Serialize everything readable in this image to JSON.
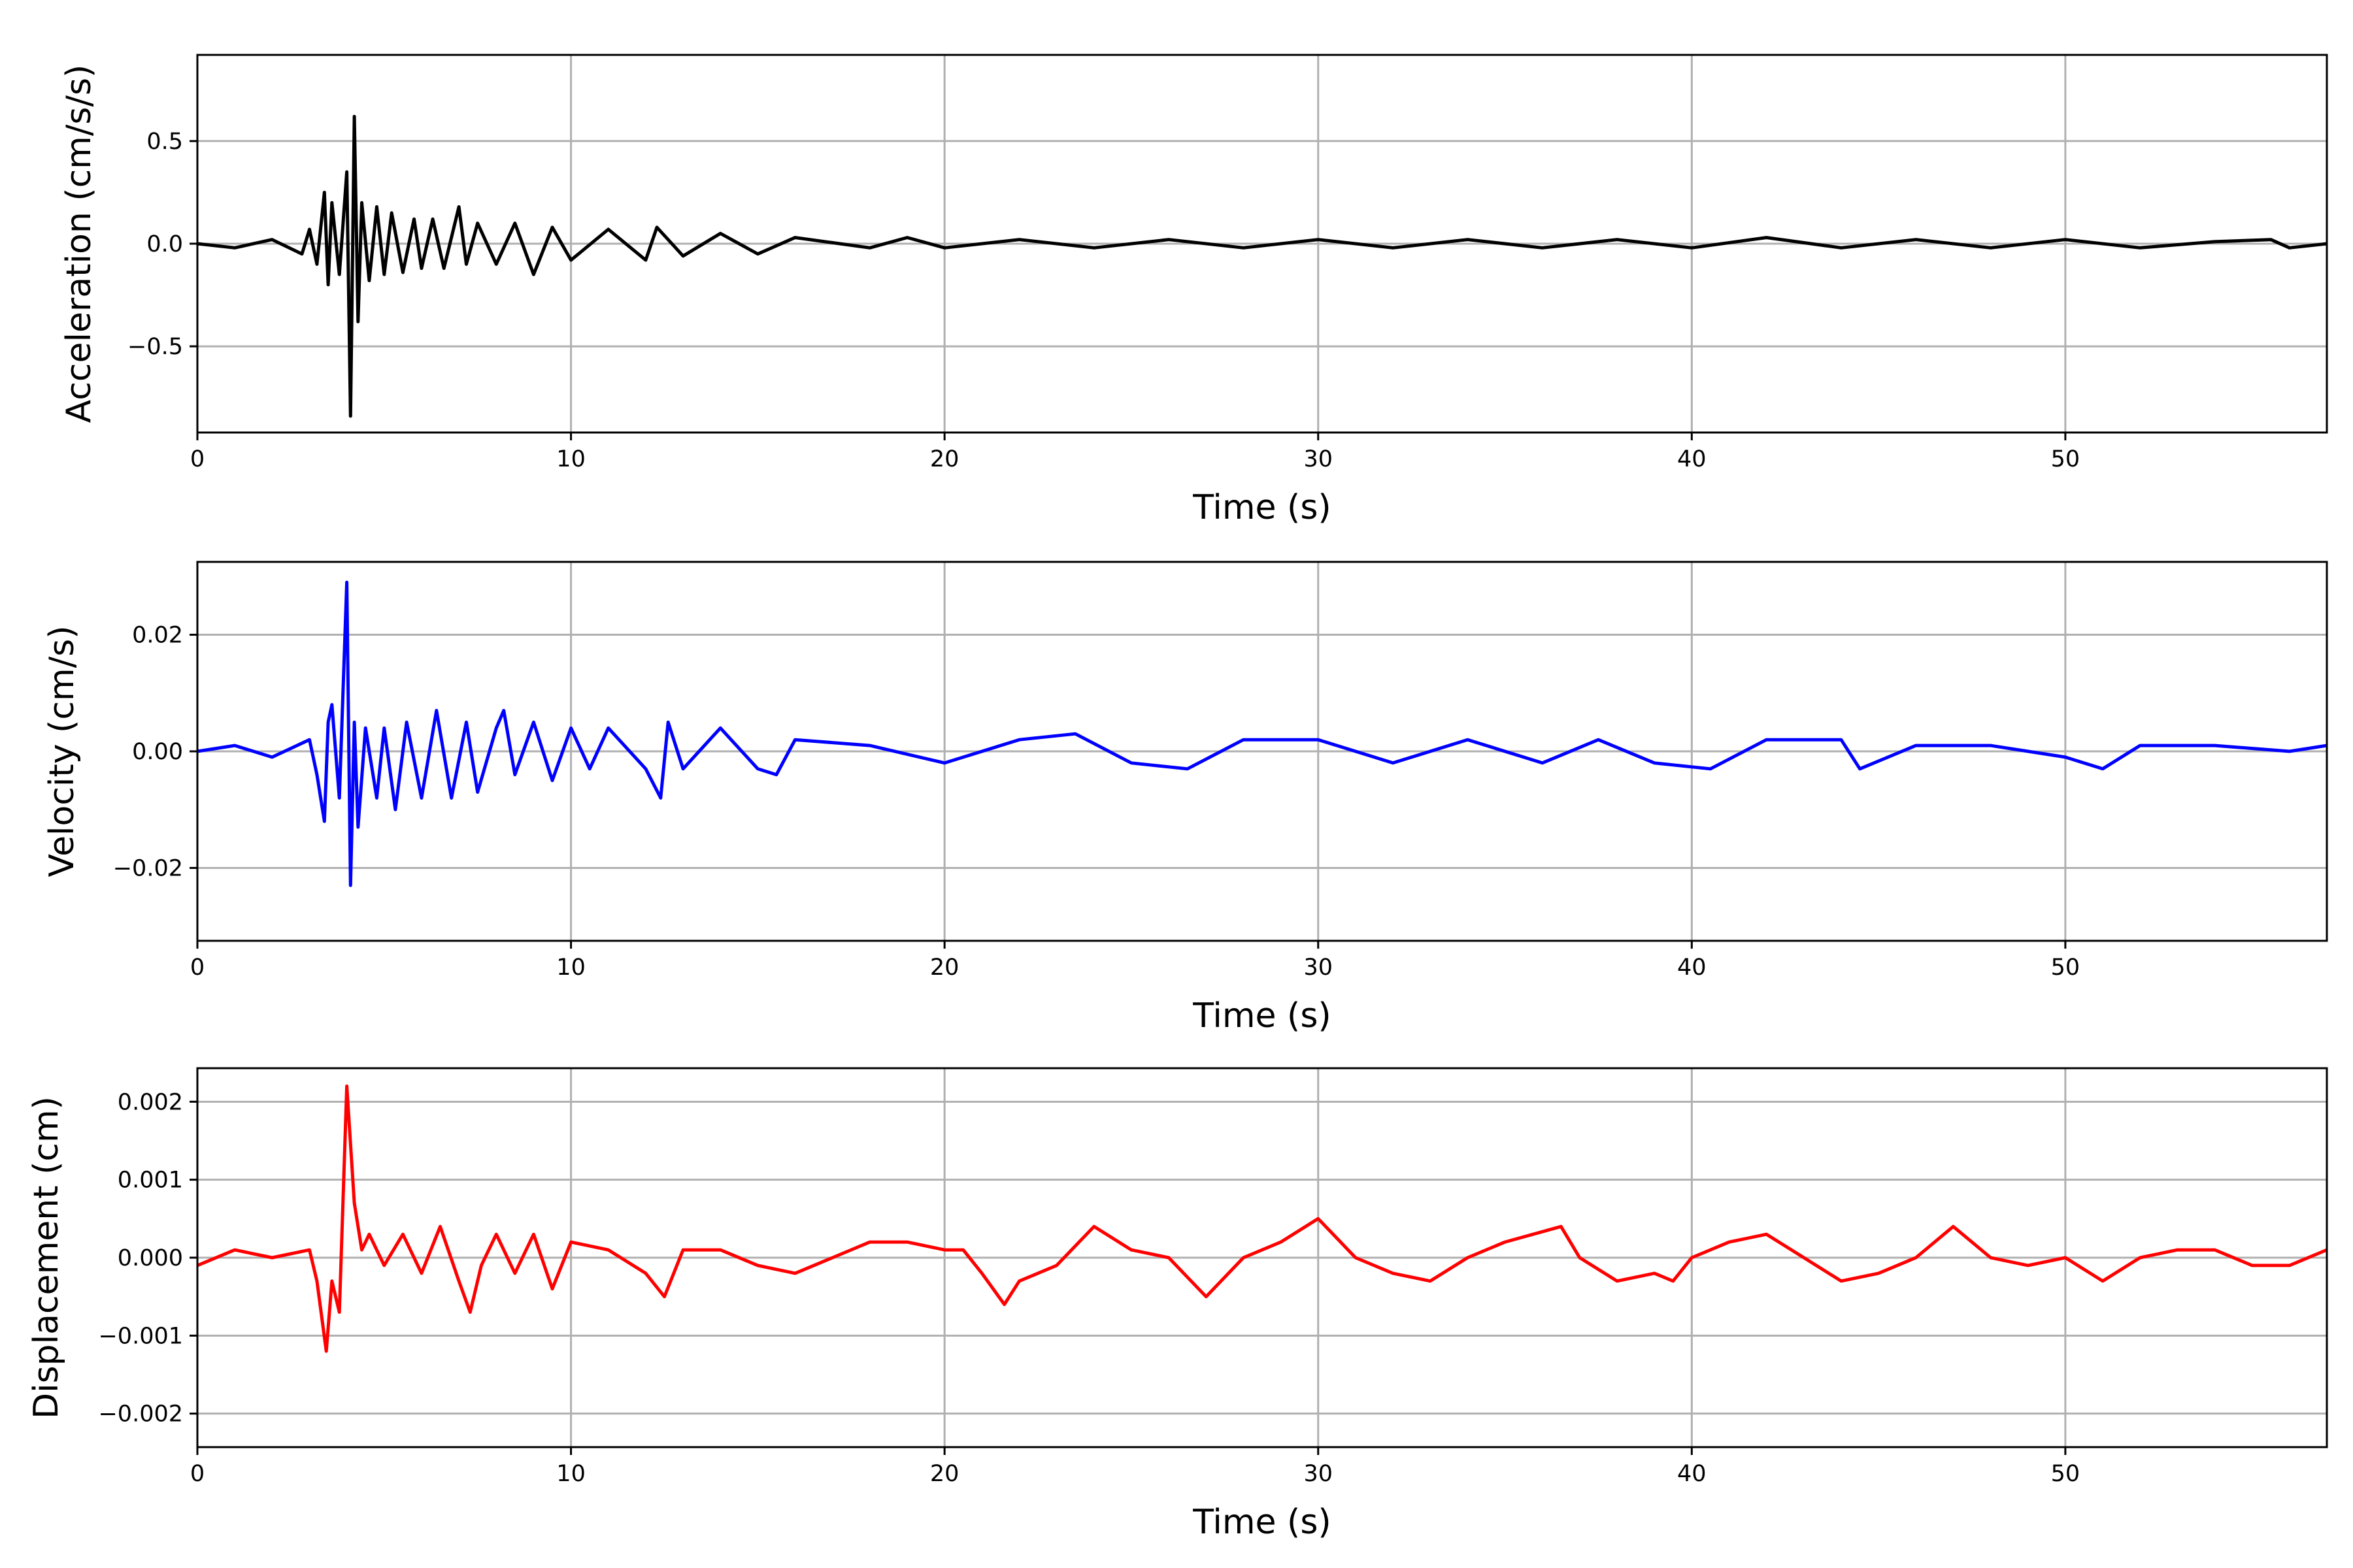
{
  "figure": {
    "background": "#ffffff",
    "grid_color": "#b0b0b0"
  },
  "chart_data": [
    {
      "type": "line",
      "id": "acceleration",
      "xlabel": "Time (s)",
      "ylabel": "Acceleration (cm/s/s)",
      "xlim": [
        0,
        57
      ],
      "ylim": [
        -0.92,
        0.92
      ],
      "xticks": [
        0,
        10,
        20,
        30,
        40,
        50
      ],
      "yticks": [
        -0.5,
        0.0,
        0.5
      ],
      "yticklabels": [
        "−0.5",
        "0.0",
        "0.5"
      ],
      "grid": true,
      "series": [
        {
          "color": "#000000",
          "points": [
            [
              0,
              0.0
            ],
            [
              1,
              -0.02
            ],
            [
              2,
              0.02
            ],
            [
              2.8,
              -0.05
            ],
            [
              3.0,
              0.07
            ],
            [
              3.2,
              -0.1
            ],
            [
              3.4,
              0.25
            ],
            [
              3.5,
              -0.2
            ],
            [
              3.6,
              0.2
            ],
            [
              3.8,
              -0.15
            ],
            [
              4.0,
              0.35
            ],
            [
              4.1,
              -0.84
            ],
            [
              4.2,
              0.62
            ],
            [
              4.3,
              -0.38
            ],
            [
              4.4,
              0.2
            ],
            [
              4.6,
              -0.18
            ],
            [
              4.8,
              0.18
            ],
            [
              5.0,
              -0.15
            ],
            [
              5.2,
              0.15
            ],
            [
              5.5,
              -0.14
            ],
            [
              5.8,
              0.12
            ],
            [
              6.0,
              -0.12
            ],
            [
              6.3,
              0.12
            ],
            [
              6.6,
              -0.12
            ],
            [
              7.0,
              0.18
            ],
            [
              7.2,
              -0.1
            ],
            [
              7.5,
              0.1
            ],
            [
              8.0,
              -0.1
            ],
            [
              8.5,
              0.1
            ],
            [
              9.0,
              -0.15
            ],
            [
              9.5,
              0.08
            ],
            [
              10,
              -0.08
            ],
            [
              11,
              0.07
            ],
            [
              12,
              -0.08
            ],
            [
              12.3,
              0.08
            ],
            [
              13,
              -0.06
            ],
            [
              14,
              0.05
            ],
            [
              15,
              -0.05
            ],
            [
              16,
              0.03
            ],
            [
              18,
              -0.02
            ],
            [
              19,
              0.03
            ],
            [
              20,
              -0.02
            ],
            [
              22,
              0.02
            ],
            [
              24,
              -0.02
            ],
            [
              26,
              0.02
            ],
            [
              28,
              -0.02
            ],
            [
              30,
              0.02
            ],
            [
              32,
              -0.02
            ],
            [
              34,
              0.02
            ],
            [
              36,
              -0.02
            ],
            [
              38,
              0.02
            ],
            [
              40,
              -0.02
            ],
            [
              42,
              0.03
            ],
            [
              44,
              -0.02
            ],
            [
              46,
              0.02
            ],
            [
              48,
              -0.02
            ],
            [
              50,
              0.02
            ],
            [
              52,
              -0.02
            ],
            [
              54,
              0.01
            ],
            [
              55.5,
              0.02
            ],
            [
              56,
              -0.02
            ],
            [
              57,
              0.0
            ]
          ]
        }
      ]
    },
    {
      "type": "line",
      "id": "velocity",
      "xlabel": "Time (s)",
      "ylabel": "Velocity (cm/s)",
      "xlim": [
        0,
        57
      ],
      "ylim": [
        -0.0325,
        0.0325
      ],
      "xticks": [
        0,
        10,
        20,
        30,
        40,
        50
      ],
      "yticks": [
        -0.02,
        0.0,
        0.02
      ],
      "yticklabels": [
        "−0.02",
        "0.00",
        "0.02"
      ],
      "grid": true,
      "series": [
        {
          "color": "#0000ff",
          "points": [
            [
              0,
              0.0
            ],
            [
              1,
              0.001
            ],
            [
              2,
              -0.001
            ],
            [
              3.0,
              0.002
            ],
            [
              3.2,
              -0.004
            ],
            [
              3.4,
              -0.012
            ],
            [
              3.5,
              0.005
            ],
            [
              3.6,
              0.008
            ],
            [
              3.8,
              -0.008
            ],
            [
              4.0,
              0.029
            ],
            [
              4.1,
              -0.023
            ],
            [
              4.2,
              0.005
            ],
            [
              4.3,
              -0.013
            ],
            [
              4.5,
              0.004
            ],
            [
              4.8,
              -0.008
            ],
            [
              5.0,
              0.004
            ],
            [
              5.3,
              -0.01
            ],
            [
              5.6,
              0.005
            ],
            [
              6.0,
              -0.008
            ],
            [
              6.4,
              0.007
            ],
            [
              6.8,
              -0.008
            ],
            [
              7.2,
              0.005
            ],
            [
              7.5,
              -0.007
            ],
            [
              8.0,
              0.004
            ],
            [
              8.2,
              0.007
            ],
            [
              8.5,
              -0.004
            ],
            [
              9.0,
              0.005
            ],
            [
              9.5,
              -0.005
            ],
            [
              10,
              0.004
            ],
            [
              10.5,
              -0.003
            ],
            [
              11,
              0.004
            ],
            [
              12,
              -0.003
            ],
            [
              12.4,
              -0.008
            ],
            [
              12.6,
              0.005
            ],
            [
              13,
              -0.003
            ],
            [
              14,
              0.004
            ],
            [
              15,
              -0.003
            ],
            [
              15.5,
              -0.004
            ],
            [
              16,
              0.002
            ],
            [
              18,
              0.001
            ],
            [
              20,
              -0.002
            ],
            [
              22,
              0.002
            ],
            [
              23.5,
              0.003
            ],
            [
              25,
              -0.002
            ],
            [
              26.5,
              -0.003
            ],
            [
              28,
              0.002
            ],
            [
              30,
              0.002
            ],
            [
              32,
              -0.002
            ],
            [
              34,
              0.002
            ],
            [
              36,
              -0.002
            ],
            [
              37.5,
              0.002
            ],
            [
              39,
              -0.002
            ],
            [
              40.5,
              -0.003
            ],
            [
              42,
              0.002
            ],
            [
              44,
              0.002
            ],
            [
              44.5,
              -0.003
            ],
            [
              46,
              0.001
            ],
            [
              48,
              0.001
            ],
            [
              50,
              -0.001
            ],
            [
              51,
              -0.003
            ],
            [
              52,
              0.001
            ],
            [
              54,
              0.001
            ],
            [
              56,
              0.0
            ],
            [
              57,
              0.001
            ]
          ]
        }
      ]
    },
    {
      "type": "line",
      "id": "displacement",
      "xlabel": "Time (s)",
      "ylabel": "Displacement (cm)",
      "xlim": [
        0,
        57
      ],
      "ylim": [
        -0.00243,
        0.00243
      ],
      "xticks": [
        0,
        10,
        20,
        30,
        40,
        50
      ],
      "yticks": [
        -0.002,
        -0.001,
        0.0,
        0.001,
        0.002
      ],
      "yticklabels": [
        "−0.002",
        "−0.001",
        "0.000",
        "0.001",
        "0.002"
      ],
      "grid": true,
      "series": [
        {
          "color": "#ff0000",
          "points": [
            [
              0,
              -0.0001
            ],
            [
              1,
              0.0001
            ],
            [
              2,
              0.0
            ],
            [
              3,
              0.0001
            ],
            [
              3.2,
              -0.0003
            ],
            [
              3.45,
              -0.0012
            ],
            [
              3.6,
              -0.0003
            ],
            [
              3.8,
              -0.0007
            ],
            [
              4.0,
              0.0022
            ],
            [
              4.2,
              0.0007
            ],
            [
              4.4,
              0.0001
            ],
            [
              4.6,
              0.0003
            ],
            [
              5,
              -0.0001
            ],
            [
              5.5,
              0.0003
            ],
            [
              6.0,
              -0.0002
            ],
            [
              6.5,
              0.0004
            ],
            [
              7.0,
              -0.0003
            ],
            [
              7.3,
              -0.0007
            ],
            [
              7.6,
              -0.0001
            ],
            [
              8,
              0.0003
            ],
            [
              8.5,
              -0.0002
            ],
            [
              9,
              0.0003
            ],
            [
              9.5,
              -0.0004
            ],
            [
              10,
              0.0002
            ],
            [
              11,
              0.0001
            ],
            [
              12,
              -0.0002
            ],
            [
              12.5,
              -0.0005
            ],
            [
              13,
              0.0001
            ],
            [
              14,
              0.0001
            ],
            [
              15,
              -0.0001
            ],
            [
              16,
              -0.0002
            ],
            [
              17,
              0.0
            ],
            [
              18,
              0.0002
            ],
            [
              19,
              0.0002
            ],
            [
              20,
              0.0001
            ],
            [
              20.5,
              0.0001
            ],
            [
              21,
              -0.0002
            ],
            [
              21.6,
              -0.0006
            ],
            [
              22,
              -0.0003
            ],
            [
              23,
              -0.0001
            ],
            [
              24,
              0.0004
            ],
            [
              25,
              0.0001
            ],
            [
              26,
              0.0
            ],
            [
              27,
              -0.0005
            ],
            [
              28,
              0.0
            ],
            [
              29,
              0.0002
            ],
            [
              30,
              0.0005
            ],
            [
              31,
              0.0
            ],
            [
              32,
              -0.0002
            ],
            [
              33,
              -0.0003
            ],
            [
              34,
              0.0
            ],
            [
              35,
              0.0002
            ],
            [
              36.5,
              0.0004
            ],
            [
              37,
              0.0
            ],
            [
              38,
              -0.0003
            ],
            [
              39,
              -0.0002
            ],
            [
              39.5,
              -0.0003
            ],
            [
              40,
              0.0
            ],
            [
              41,
              0.0002
            ],
            [
              42,
              0.0003
            ],
            [
              43,
              0.0
            ],
            [
              44,
              -0.0003
            ],
            [
              45,
              -0.0002
            ],
            [
              46,
              0.0
            ],
            [
              47,
              0.0004
            ],
            [
              48,
              0.0
            ],
            [
              49,
              -0.0001
            ],
            [
              50,
              0.0
            ],
            [
              51,
              -0.0003
            ],
            [
              52,
              0.0
            ],
            [
              53,
              0.0001
            ],
            [
              54,
              0.0001
            ],
            [
              55,
              -0.0001
            ],
            [
              56,
              -0.0001
            ],
            [
              57,
              0.0001
            ]
          ]
        }
      ]
    }
  ]
}
